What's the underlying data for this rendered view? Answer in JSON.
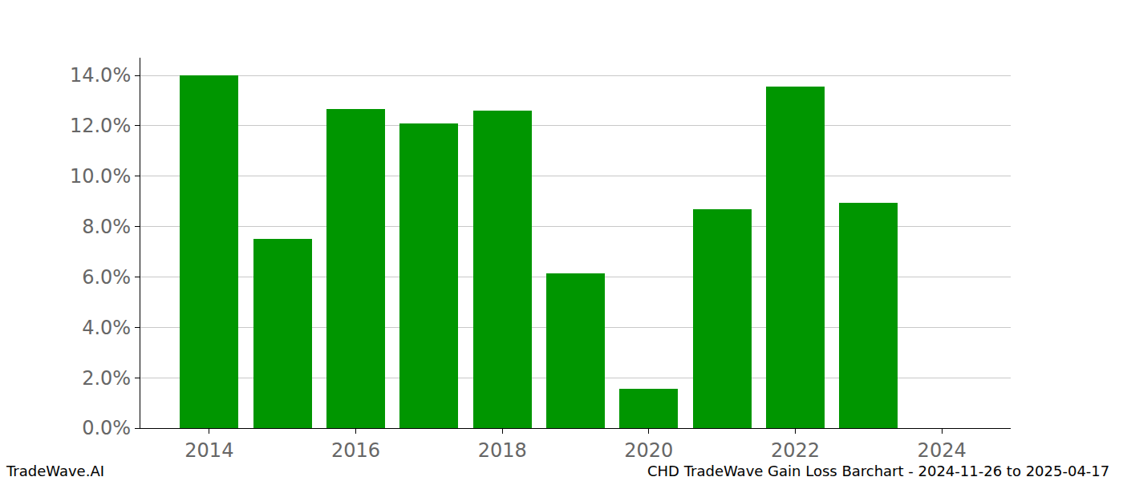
{
  "chart_data": {
    "type": "bar",
    "x": [
      2014,
      2015,
      2016,
      2017,
      2018,
      2019,
      2020,
      2021,
      2022,
      2023,
      2024
    ],
    "values": [
      14.0,
      7.5,
      12.65,
      12.1,
      12.6,
      6.15,
      1.55,
      8.7,
      13.55,
      8.95,
      0
    ],
    "color": "#009600",
    "xlim": [
      2013.06,
      2024.94
    ],
    "xticks": [
      2014,
      2016,
      2018,
      2020,
      2022,
      2024
    ],
    "ylim": [
      0,
      14.7
    ],
    "yticks": [
      {
        "value": 0,
        "label": "0.0%"
      },
      {
        "value": 2,
        "label": "2.0%"
      },
      {
        "value": 4,
        "label": "4.0%"
      },
      {
        "value": 6,
        "label": "6.0%"
      },
      {
        "value": 8,
        "label": "8.0%"
      },
      {
        "value": 10,
        "label": "10.0%"
      },
      {
        "value": 12,
        "label": "12.0%"
      },
      {
        "value": 14,
        "label": "14.0%"
      }
    ],
    "grid": true,
    "annotations": [
      "TradeWave.AI",
      "CHD TradeWave Gain Loss Barchart - 2024-11-26 to 2025-04-17"
    ]
  }
}
